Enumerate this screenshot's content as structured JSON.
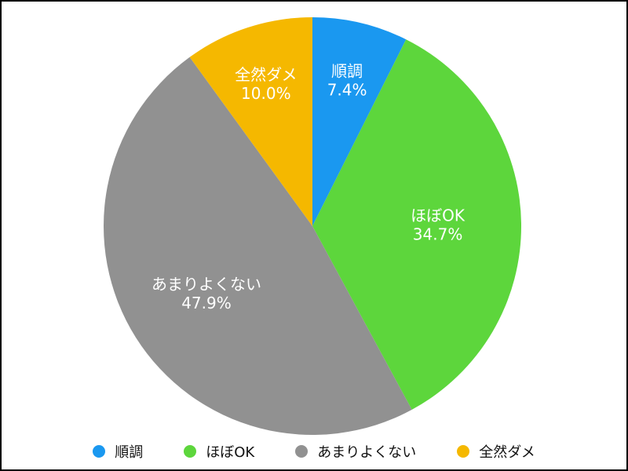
{
  "chart_data": {
    "type": "pie",
    "categories": [
      "順調",
      "ほぼOK",
      "あまりよくない",
      "全然ダメ"
    ],
    "values": [
      7.4,
      34.7,
      47.9,
      10.0
    ],
    "labels": [
      "7.4%",
      "34.7%",
      "47.9%",
      "10.0%"
    ],
    "colors": [
      "#1a98f0",
      "#5dd63c",
      "#919191",
      "#f5b800"
    ],
    "start": "12 o'clock",
    "direction": "clockwise",
    "legend_position": "bottom"
  }
}
